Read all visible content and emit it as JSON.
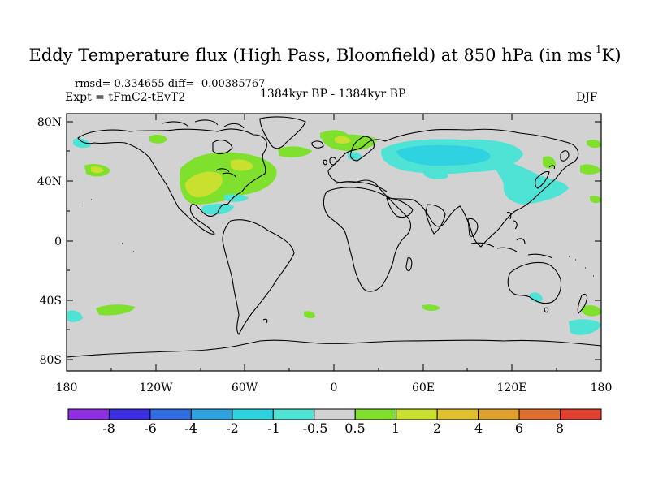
{
  "title_main": "Eddy Temperature flux (High Pass, Bloomfield) at 850 hPa (in ms",
  "title_sup": "-1",
  "title_end": "K)",
  "stats": "rmsd= 0.334655 diff= -0.00385767",
  "experiment": "Expt = tFmC2-tEvT2",
  "period": "1384kyr BP - 1384kyr BP",
  "season": "DJF",
  "lat_ticks": [
    "80N",
    "40N",
    "0",
    "40S",
    "80S"
  ],
  "lon_ticks": [
    "180",
    "120W",
    "60W",
    "0",
    "60E",
    "120E",
    "180"
  ],
  "colorbar": {
    "colors": [
      "#8f2ee0",
      "#3a2ee0",
      "#2e6ee0",
      "#2ea3e0",
      "#2ed2e0",
      "#4fe3d6",
      "#d2d2d2",
      "#7fe02e",
      "#c9e02e",
      "#e0c02e",
      "#e0a02e",
      "#e06e2e",
      "#e0402e"
    ],
    "labels": [
      "-8",
      "-6",
      "-4",
      "-2",
      "-1",
      "-0.5",
      "0.5",
      "1",
      "2",
      "4",
      "6",
      "8"
    ]
  },
  "chart_data": {
    "type": "heatmap",
    "title": "Eddy Temperature flux (High Pass, Bloomfield) at 850 hPa (in ms-1K)",
    "projection": "cylindrical equidistant",
    "lon_range": [
      -180,
      180
    ],
    "lat_range": [
      -90,
      90
    ],
    "levels": [
      -8,
      -6,
      -4,
      -2,
      -1,
      -0.5,
      0.5,
      1,
      2,
      4,
      6,
      8
    ],
    "anomaly_regions": [
      {
        "region": "eastern North America",
        "lon": [
          -100,
          -60
        ],
        "lat": [
          30,
          55
        ],
        "value_range": [
          1,
          2
        ]
      },
      {
        "region": "Gulf of Mexico / Caribbean",
        "lon": [
          -85,
          -60
        ],
        "lat": [
          22,
          32
        ],
        "value_range": [
          -1,
          -0.5
        ]
      },
      {
        "region": "North Pacific (east)",
        "lon": [
          -175,
          -150
        ],
        "lat": [
          38,
          50
        ],
        "value_range": [
          1,
          2
        ]
      },
      {
        "region": "North Atlantic",
        "lon": [
          -40,
          -20
        ],
        "lat": [
          50,
          60
        ],
        "value_range": [
          0.5,
          1
        ]
      },
      {
        "region": "Scandinavia / Barents",
        "lon": [
          0,
          50
        ],
        "lat": [
          55,
          75
        ],
        "value_range": [
          0.5,
          1
        ]
      },
      {
        "region": "western Eurasia",
        "lon": [
          30,
          110
        ],
        "lat": [
          40,
          60
        ],
        "value_range": [
          -2,
          -0.5
        ]
      },
      {
        "region": "East Asia / Japan",
        "lon": [
          110,
          145
        ],
        "lat": [
          25,
          45
        ],
        "value_range": [
          -1,
          -0.5
        ]
      },
      {
        "region": "North Pacific (west)",
        "lon": [
          140,
          175
        ],
        "lat": [
          30,
          50
        ],
        "value_range": [
          -1,
          1
        ]
      },
      {
        "region": "South Pacific",
        "lon": [
          -150,
          -120
        ],
        "lat": [
          -45,
          -38
        ],
        "value_range": [
          0.5,
          1
        ]
      },
      {
        "region": "South Atlantic",
        "lon": [
          -20,
          0
        ],
        "lat": [
          -45,
          -40
        ],
        "value_range": [
          0.5,
          1
        ]
      },
      {
        "region": "southern Indian Ocean",
        "lon": [
          60,
          90
        ],
        "lat": [
          -45,
          -40
        ],
        "value_range": [
          0.5,
          1
        ]
      },
      {
        "region": "south of Australia",
        "lon": [
          110,
          120
        ],
        "lat": [
          -42,
          -35
        ],
        "value_range": [
          -1,
          -0.5
        ]
      },
      {
        "region": "South Pacific (far west)",
        "lon": [
          155,
          180
        ],
        "lat": [
          -60,
          -38
        ],
        "value_range": [
          -1,
          1
        ]
      },
      {
        "region": "South Pacific (dateline)",
        "lon": [
          -180,
          -170
        ],
        "lat": [
          -55,
          -38
        ],
        "value_range": [
          -1,
          -0.5
        ]
      }
    ]
  }
}
